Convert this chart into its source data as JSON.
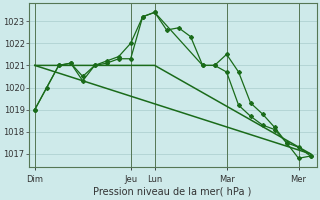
{
  "background_color": "#ceeaea",
  "grid_color": "#aacccc",
  "line_color": "#1a6b1a",
  "xlabel": "Pression niveau de la mer( hPa )",
  "ylim": [
    1016.4,
    1023.8
  ],
  "yticks": [
    1017,
    1018,
    1019,
    1020,
    1021,
    1022,
    1023
  ],
  "xlim": [
    0,
    48
  ],
  "x_day_labels": [
    "Dim",
    "Jeu",
    "Lun",
    "Mar",
    "Mer"
  ],
  "x_day_positions": [
    1,
    17,
    21,
    33,
    45
  ],
  "series1_x": [
    1,
    3,
    5,
    7,
    9,
    11,
    13,
    15,
    17,
    19,
    21,
    23,
    25,
    27,
    29,
    31,
    33,
    35,
    37,
    39,
    41,
    43,
    45,
    47
  ],
  "series1_y": [
    1019.0,
    1020.0,
    1021.0,
    1021.1,
    1020.3,
    1021.0,
    1021.2,
    1021.4,
    1022.0,
    1023.2,
    1023.4,
    1022.6,
    1022.7,
    1022.3,
    1021.0,
    1021.0,
    1021.5,
    1020.7,
    1019.3,
    1018.8,
    1018.2,
    1017.5,
    1017.3,
    1016.9
  ],
  "series2_x": [
    1,
    5,
    7,
    9,
    11,
    13,
    15,
    17,
    19,
    21,
    29,
    31,
    33,
    35,
    37,
    39,
    41,
    43,
    45,
    47
  ],
  "series2_y": [
    1019.0,
    1021.0,
    1021.1,
    1020.5,
    1021.0,
    1021.1,
    1021.3,
    1021.3,
    1023.2,
    1023.4,
    1021.0,
    1021.0,
    1020.7,
    1019.2,
    1018.7,
    1018.3,
    1018.1,
    1017.5,
    1016.8,
    1016.9
  ],
  "series3_x": [
    1,
    21,
    47
  ],
  "series3_y": [
    1021.0,
    1021.0,
    1017.0
  ],
  "series4_x": [
    1,
    47
  ],
  "series4_y": [
    1021.0,
    1017.0
  ]
}
